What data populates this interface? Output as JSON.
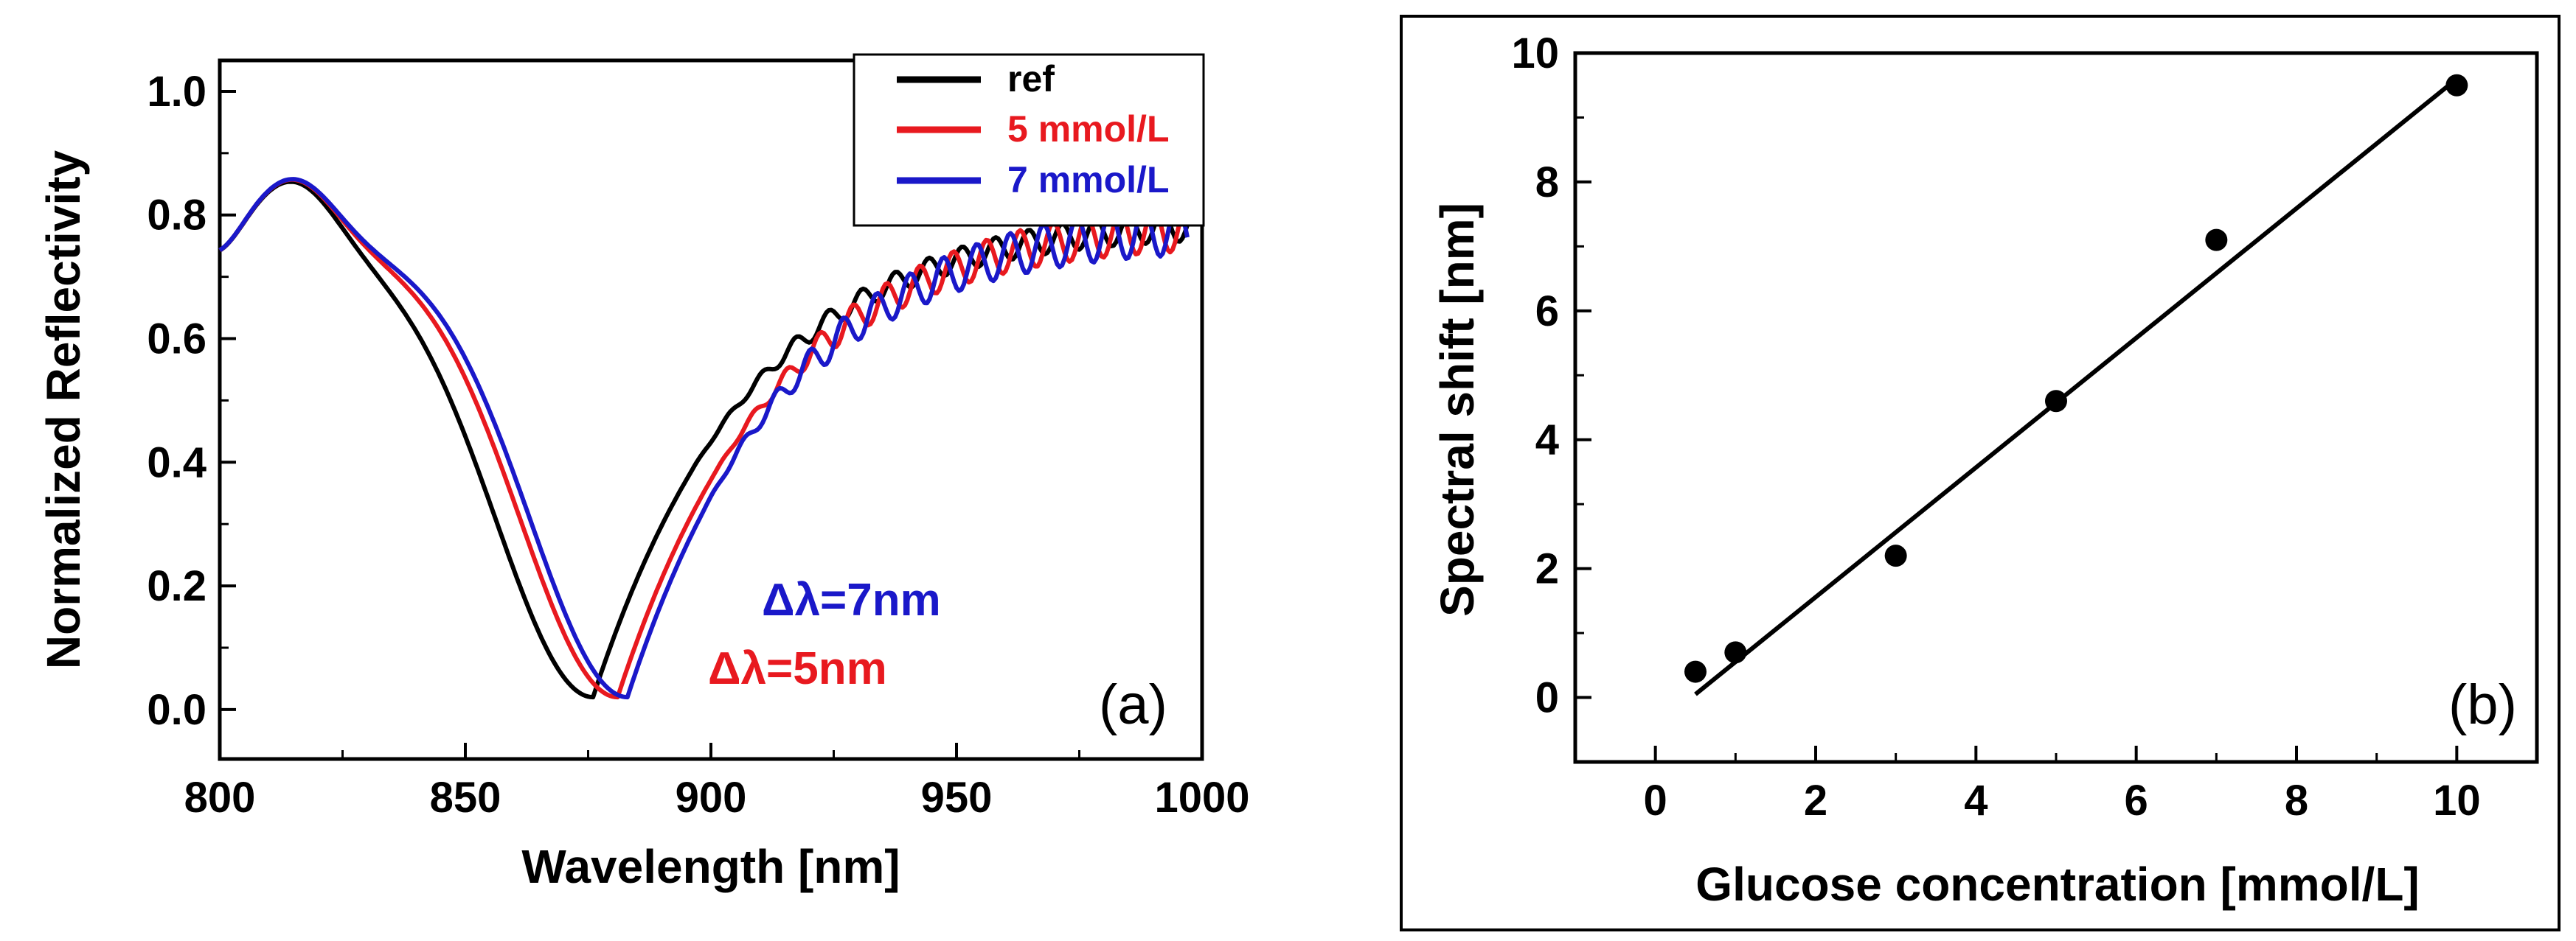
{
  "chart_data": [
    {
      "type": "line",
      "panel_label": "(a)",
      "xlabel": "Wavelength [nm]",
      "ylabel": "Normalized Reflectivity",
      "xlim": [
        800,
        1000
      ],
      "ylim": [
        -0.08,
        1.05
      ],
      "xticks": [
        800,
        850,
        900,
        950,
        1000
      ],
      "yticks": [
        0.0,
        0.2,
        0.4,
        0.6,
        0.8,
        1.0
      ],
      "ytick_labels": [
        "0.0",
        "0.2",
        "0.4",
        "0.6",
        "0.8",
        "1.0"
      ],
      "legend_position": "top-right",
      "series": [
        {
          "name": "ref",
          "color": "#000000",
          "dip_center_nm": 876,
          "fringe_start_nm": 895,
          "fringe_amplitude": 0.012
        },
        {
          "name": "5 mmol/L",
          "color": "#e8191f",
          "dip_center_nm": 881,
          "fringe_start_nm": 900,
          "fringe_amplitude": 0.018
        },
        {
          "name": "7 mmol/L",
          "color": "#1a18c9",
          "dip_center_nm": 883,
          "fringe_start_nm": 898,
          "fringe_amplitude": 0.02
        }
      ],
      "annotations": [
        {
          "text": "Δλ=7nm",
          "color": "#1a18c9"
        },
        {
          "text": "Δλ=5nm",
          "color": "#e8191f"
        }
      ]
    },
    {
      "type": "scatter",
      "panel_label": "(b)",
      "xlabel": "Glucose concentration [mmol/L]",
      "ylabel": "Spectral shift [nm]",
      "xlim": [
        -1,
        11
      ],
      "ylim": [
        -1,
        10
      ],
      "xticks": [
        0,
        2,
        4,
        6,
        8,
        10
      ],
      "yticks": [
        0,
        2,
        4,
        6,
        8,
        10
      ],
      "points": {
        "x": [
          0.5,
          1,
          3,
          5,
          7,
          10
        ],
        "y": [
          0.4,
          0.7,
          2.2,
          4.6,
          7.1,
          9.5
        ]
      },
      "fit_line": {
        "x": [
          0.5,
          10
        ],
        "y": [
          0.05,
          9.6
        ]
      }
    }
  ]
}
